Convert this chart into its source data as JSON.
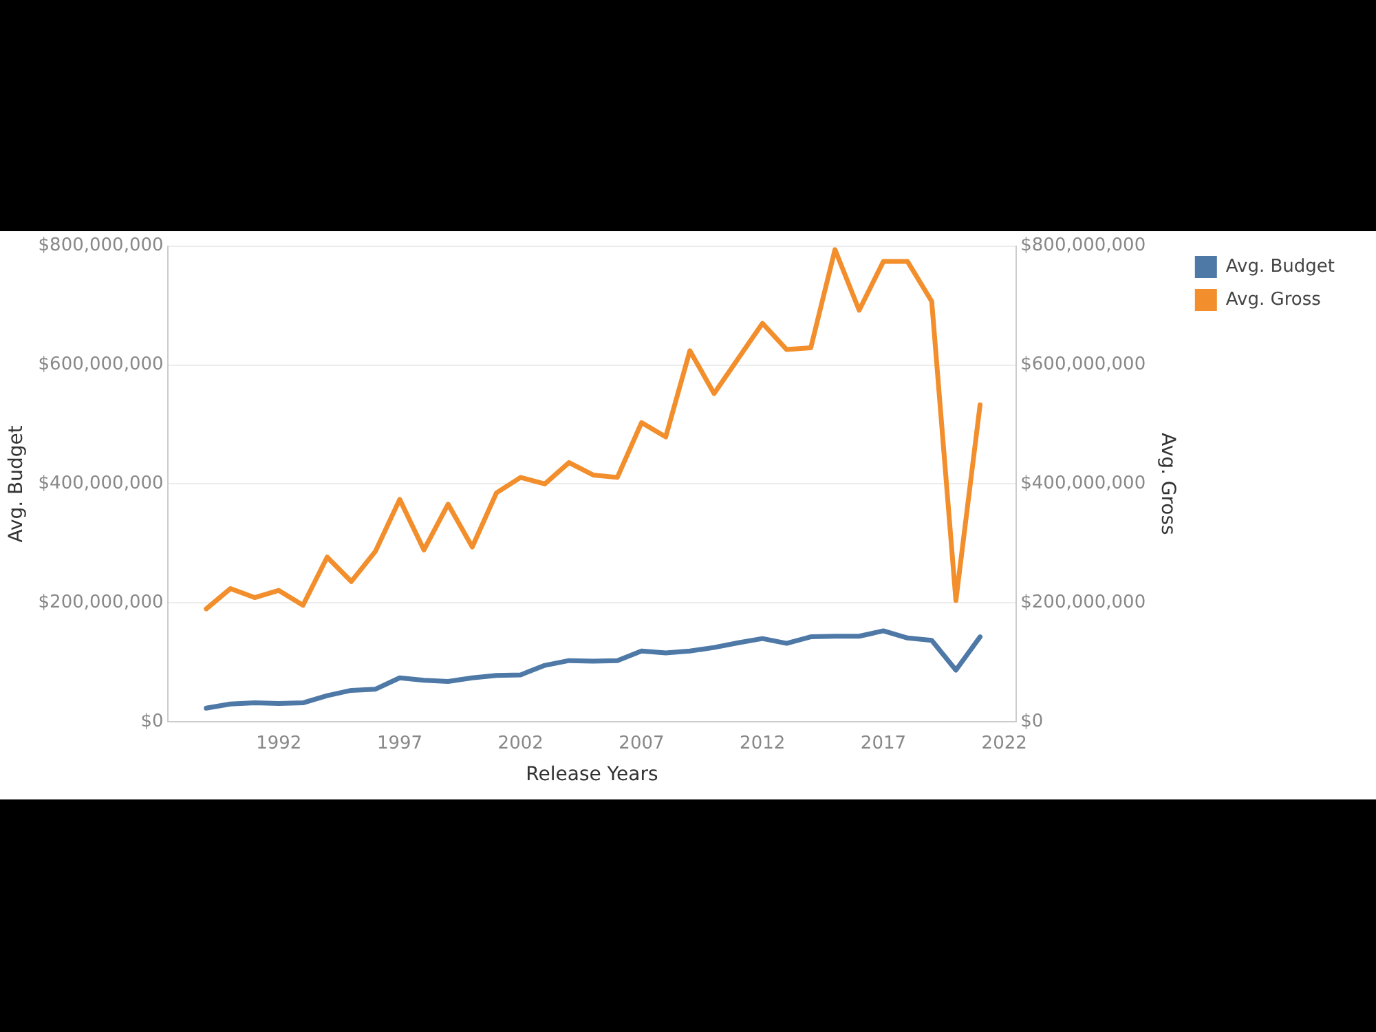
{
  "chart_data": {
    "type": "line",
    "xlabel": "Release Years",
    "ylabel": "Avg. Budget",
    "y2label": "Avg. Gross",
    "x": [
      1989,
      1990,
      1991,
      1992,
      1993,
      1994,
      1995,
      1996,
      1997,
      1998,
      1999,
      2000,
      2001,
      2002,
      2003,
      2004,
      2005,
      2006,
      2007,
      2008,
      2009,
      2010,
      2011,
      2012,
      2013,
      2014,
      2015,
      2016,
      2017,
      2018,
      2019,
      2020,
      2021
    ],
    "series": [
      {
        "name": "Avg. Budget",
        "color": "#4e79a7",
        "values": [
          23000000,
          30000000,
          32000000,
          31000000,
          32000000,
          44000000,
          53000000,
          55000000,
          74000000,
          70000000,
          68000000,
          74000000,
          78000000,
          79000000,
          95000000,
          103000000,
          102000000,
          103000000,
          119000000,
          116000000,
          119000000,
          125000000,
          133000000,
          140000000,
          132000000,
          143000000,
          144000000,
          144000000,
          153000000,
          141000000,
          137000000,
          87000000,
          143000000
        ]
      },
      {
        "name": "Avg. Gross",
        "color": "#f28e2b",
        "axis": "y2",
        "values": [
          190000000,
          224000000,
          209000000,
          221000000,
          196000000,
          277000000,
          236000000,
          287000000,
          374000000,
          289000000,
          366000000,
          294000000,
          385000000,
          411000000,
          400000000,
          436000000,
          415000000,
          411000000,
          503000000,
          479000000,
          624000000,
          552000000,
          611000000,
          670000000,
          626000000,
          629000000,
          794000000,
          692000000,
          774000000,
          774000000,
          707000000,
          204000000,
          533000000
        ]
      }
    ],
    "xlim": [
      1987.4,
      2022.5
    ],
    "xticks": [
      1992,
      1997,
      2002,
      2007,
      2012,
      2017,
      2022
    ],
    "ylim": [
      0,
      800000000
    ],
    "yticks": [
      {
        "value": 0,
        "label": "$0"
      },
      {
        "value": 200000000,
        "label": "$200,000,000"
      },
      {
        "value": 400000000,
        "label": "$400,000,000"
      },
      {
        "value": 600000000,
        "label": "$600,000,000"
      },
      {
        "value": 800000000,
        "label": "$800,000,000"
      }
    ],
    "y2lim": [
      0,
      800000000
    ],
    "y2ticks": [
      {
        "value": 0,
        "label": "$0"
      },
      {
        "value": 200000000,
        "label": "$200,000,000"
      },
      {
        "value": 400000000,
        "label": "$400,000,000"
      },
      {
        "value": 600000000,
        "label": "$600,000,000"
      },
      {
        "value": 800000000,
        "label": "$800,000,000"
      }
    ],
    "grid": "y",
    "legend": "right",
    "marker": "none",
    "line_style": "solid"
  }
}
